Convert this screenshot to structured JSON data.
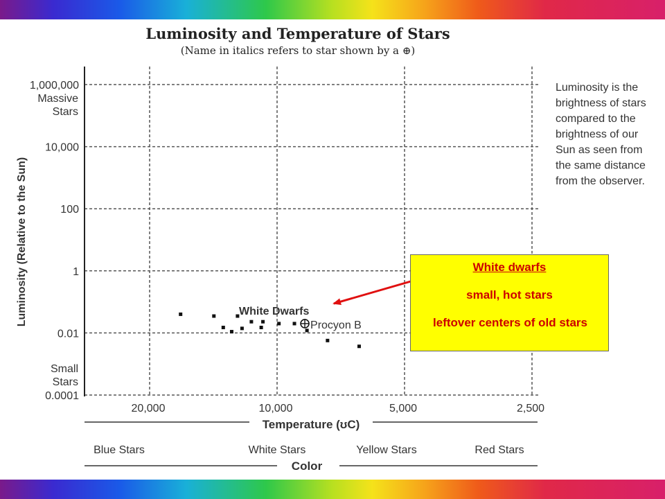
{
  "title": "Luminosity and Temperature of Stars",
  "subtitle": "(Name in italics refers to star shown by a",
  "subtitle_symbol": "⊕",
  "subtitle_end": ")",
  "description": [
    "Luminosity is the",
    "brightness of stars",
    "compared to the",
    "brightness of our",
    "Sun as seen from",
    "the same distance",
    "from the observer."
  ],
  "callout": {
    "title": "White dwarfs",
    "line2": "small, hot stars",
    "line3": "leftover centers of old stars"
  },
  "colors": {
    "callout_bg": "#ffff00",
    "callout_text": "#cc0000",
    "arrow": "#e01010"
  },
  "chart_data": {
    "type": "scatter",
    "title": "Luminosity and Temperature of Stars",
    "subtitle": "(Name in italics refers to star shown by a ⊕)",
    "xlabel": "Temperature (°C)",
    "xlabel_display": "Temperature (ʊC)",
    "ylabel": "Luminosity (Relative to the Sun)",
    "x_scale": "log, reversed",
    "y_scale": "log",
    "xlim": [
      28000,
      2400
    ],
    "ylim": [
      0.0001,
      1000000
    ],
    "grid": true,
    "x_ticks": [
      {
        "value": 20000,
        "label": "20,000"
      },
      {
        "value": 10000,
        "label": "10,000"
      },
      {
        "value": 5000,
        "label": "5,000"
      },
      {
        "value": 2500,
        "label": "2,500"
      }
    ],
    "y_ticks": [
      {
        "value": 1000000,
        "label": "1,000,000"
      },
      {
        "value": 10000,
        "label": "10,000"
      },
      {
        "value": 100,
        "label": "100"
      },
      {
        "value": 1,
        "label": "1"
      },
      {
        "value": 0.01,
        "label": "0.01"
      },
      {
        "value": 0.0001,
        "label": "0.0001"
      }
    ],
    "y_extra_labels": [
      {
        "value": 1000000,
        "lines": [
          "Massive",
          "Stars"
        ]
      },
      {
        "value": 0.0001,
        "lines": [
          "Small",
          "Stars"
        ]
      }
    ],
    "color_scale_label": "Color",
    "color_bands": [
      "Blue Stars",
      "White Stars",
      "Yellow Stars",
      "Red Stars"
    ],
    "group_label": "White Dwarfs",
    "named_star": {
      "name": "Procyon B",
      "x": 8600,
      "y": 0.02
    },
    "points": [
      {
        "x": 16900,
        "y": 0.04
      },
      {
        "x": 14100,
        "y": 0.035
      },
      {
        "x": 13400,
        "y": 0.015
      },
      {
        "x": 12800,
        "y": 0.011
      },
      {
        "x": 12400,
        "y": 0.035
      },
      {
        "x": 12100,
        "y": 0.014
      },
      {
        "x": 11500,
        "y": 0.023
      },
      {
        "x": 10900,
        "y": 0.015
      },
      {
        "x": 10800,
        "y": 0.023
      },
      {
        "x": 9900,
        "y": 0.02
      },
      {
        "x": 9100,
        "y": 0.02
      },
      {
        "x": 8500,
        "y": 0.012
      },
      {
        "x": 7600,
        "y": 0.0057
      },
      {
        "x": 6400,
        "y": 0.0037
      }
    ]
  }
}
